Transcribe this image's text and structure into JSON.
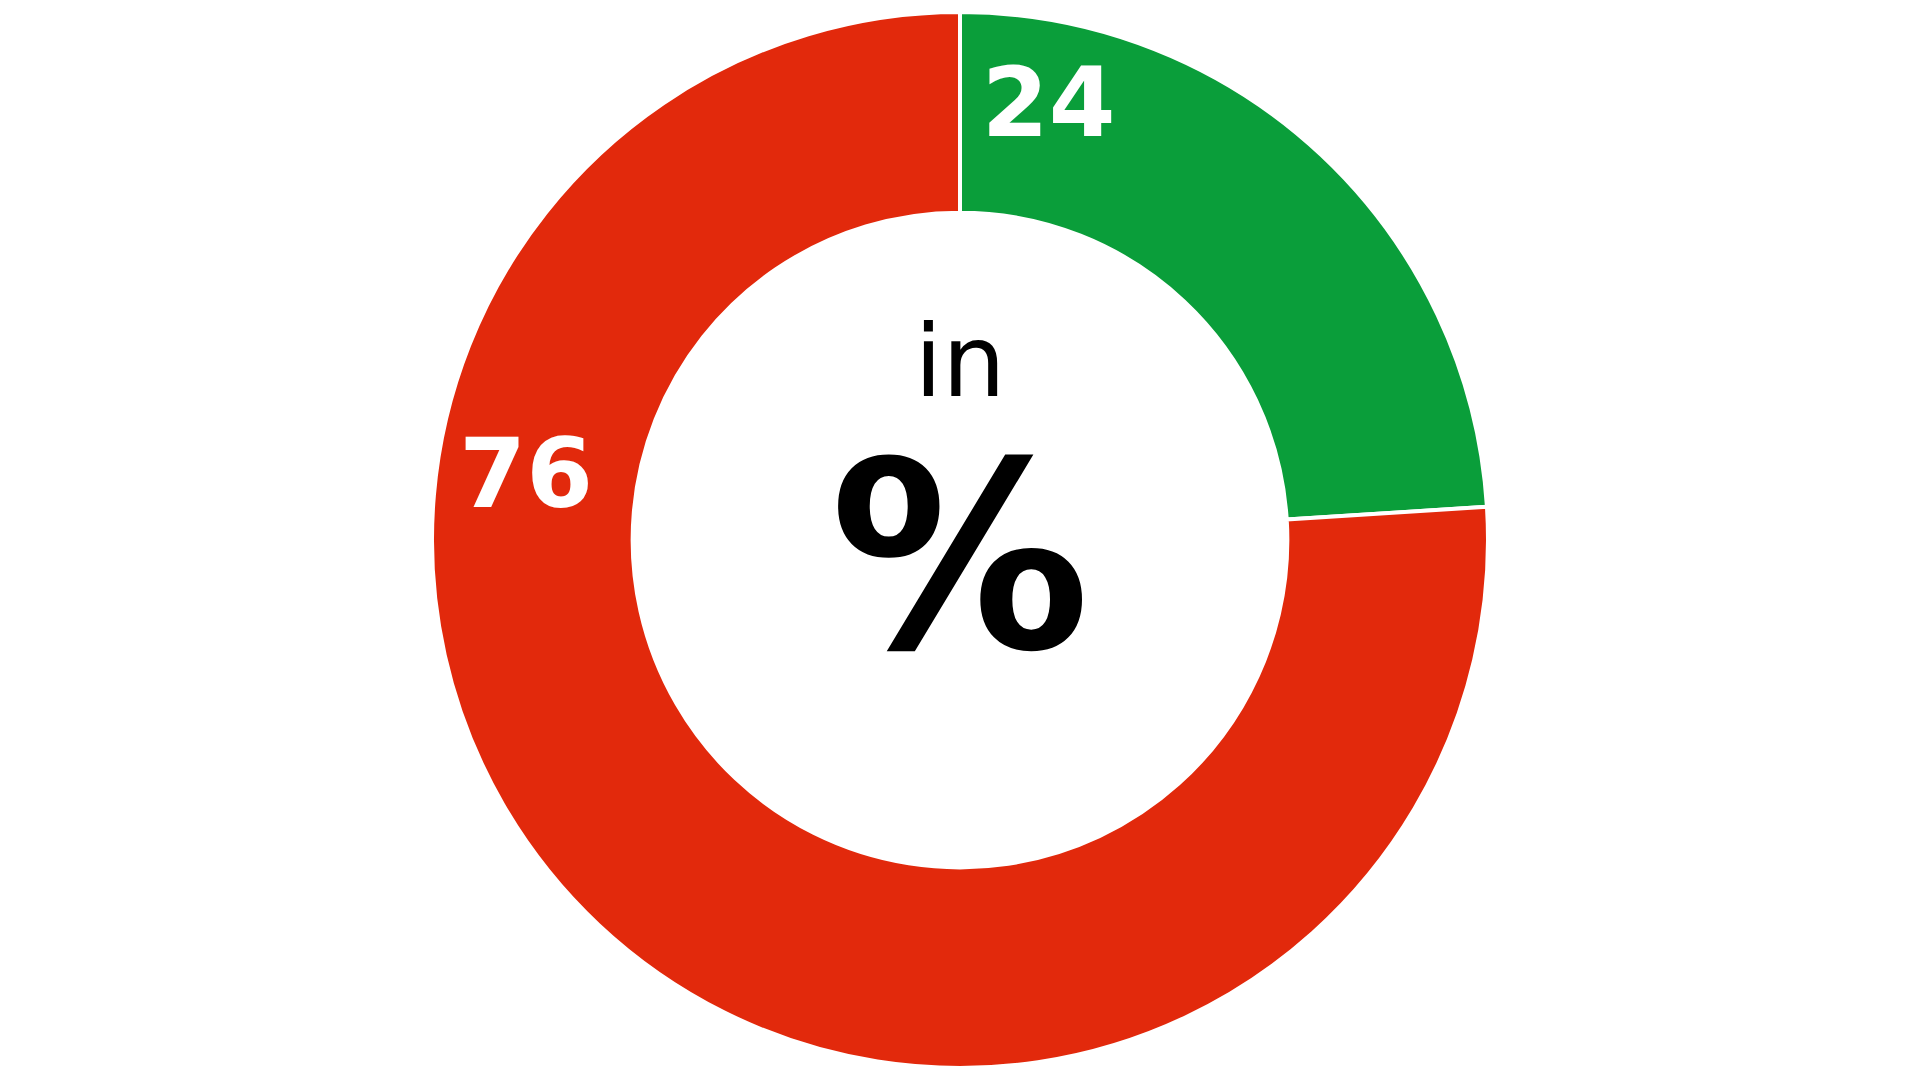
{
  "chart_data": {
    "type": "donut",
    "categories": [
      null,
      null
    ],
    "values": [
      24,
      76
    ],
    "colors": [
      "#0a9e3a",
      "#e2290c"
    ],
    "data_labels": true,
    "legend": false,
    "annotations": [
      "in",
      "%"
    ]
  }
}
